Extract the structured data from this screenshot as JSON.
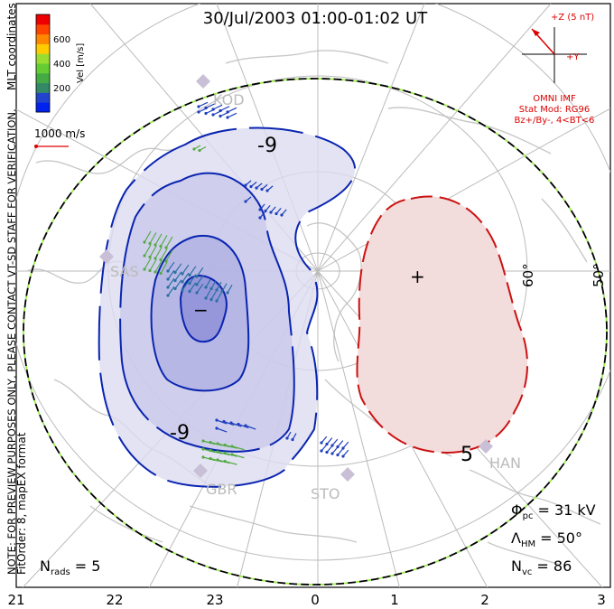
{
  "title": "30/Jul/2003 01:00-01:02 UT",
  "coord_label": "MLT coordinates",
  "colorbar": {
    "label": "Vel [m/s]",
    "ticks": [
      "600",
      "400",
      "200"
    ],
    "colors": [
      "#0022ee",
      "#2244cc",
      "#338866",
      "#44aa44",
      "#66cc33",
      "#99dd33",
      "#ffcc00",
      "#ff8800",
      "#ff4400",
      "#ee0000"
    ]
  },
  "reference_vector": {
    "label": "1000 m/s"
  },
  "notice": {
    "line1": "NOTE: FOR PREVIEW PURPOSES ONLY, PLEASE CONTACT VT-SD STAFF FOR VERIFICATION.",
    "line2": "FitOrder: 8, mapEX format"
  },
  "imf": {
    "z_label": "+Z (5 nT)",
    "y_label": "+Y",
    "source": "OMNI IMF",
    "model": "Stat Mod: RG96",
    "condition": "Bz+/By-, 4<BT<6",
    "arrow_color": "#dd0000"
  },
  "contours": {
    "negative_color": "#0a24b0",
    "positive_color": "#cc1111",
    "labels": [
      "-9",
      "-9",
      "−",
      "5",
      "+"
    ]
  },
  "latitude_labels": [
    "60°",
    "50°"
  ],
  "stations": [
    "KOD",
    "SAS",
    "GBR",
    "STO",
    "HAN"
  ],
  "mlt_ticks": [
    "21",
    "22",
    "23",
    "0",
    "1",
    "2",
    "3"
  ],
  "stats": {
    "phi_pc_label": "Φ",
    "phi_pc_sub": "pc",
    "phi_pc_value": "= 31 kV",
    "lambda_label": "Λ",
    "lambda_sub": "HM",
    "lambda_value": "= 50°",
    "nvc_label": "N",
    "nvc_sub": "vc",
    "nvc_value": "= 86",
    "nrads_label": "N",
    "nrads_sub": "rads",
    "nrads_value": "= 5"
  }
}
